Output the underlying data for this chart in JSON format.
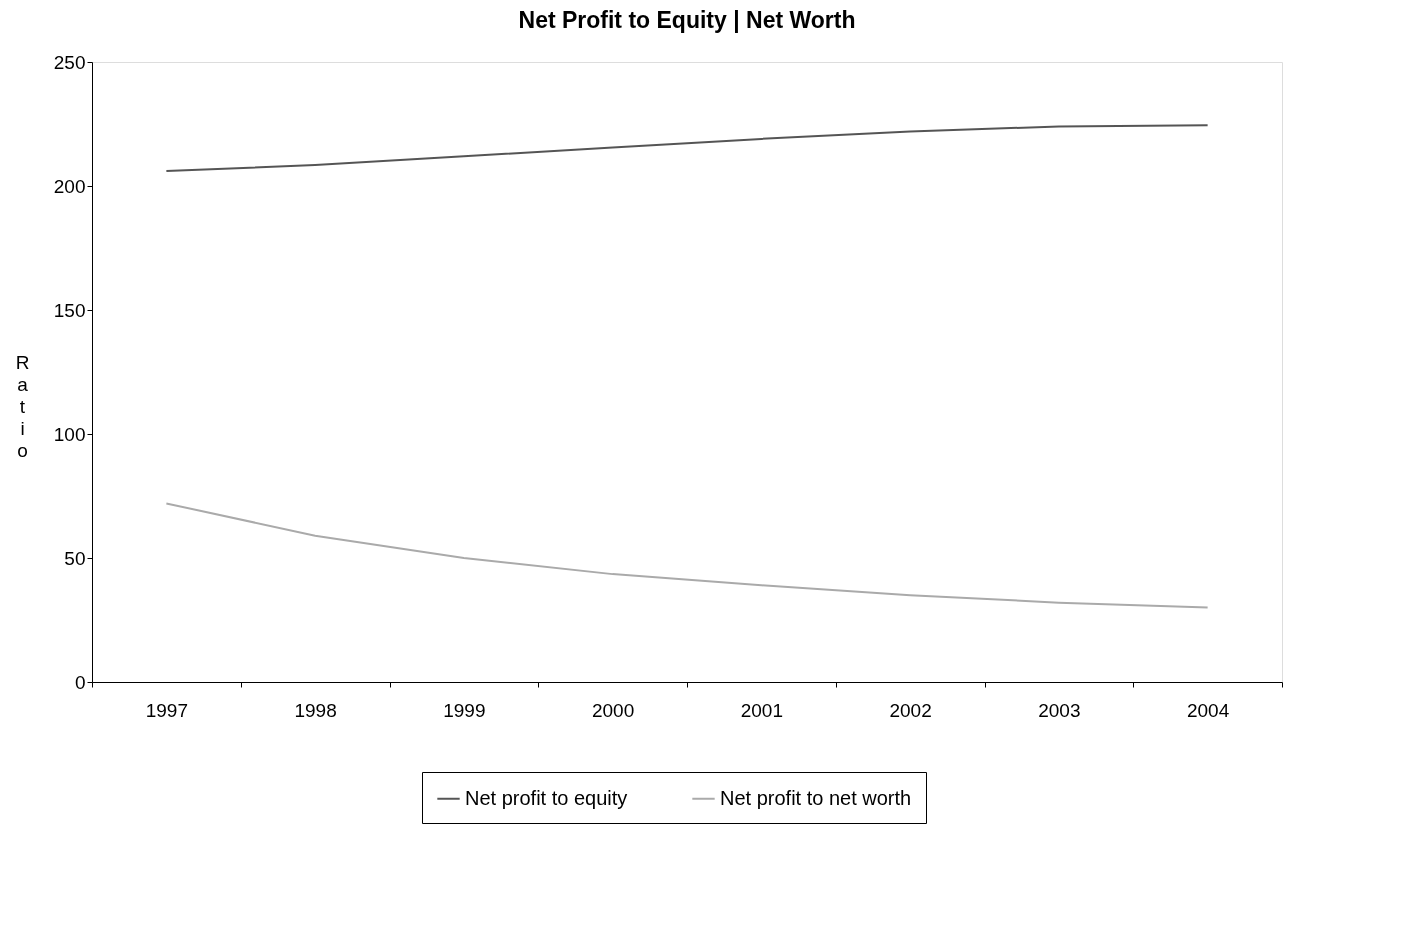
{
  "chart_data": {
    "type": "line",
    "title": "Net Profit to Equity | Net Worth",
    "ylabel": "Ratio",
    "categories": [
      "1997",
      "1998",
      "1999",
      "2000",
      "2001",
      "2002",
      "2003",
      "2004"
    ],
    "series": [
      {
        "name": "Net profit to equity",
        "color": "#555555",
        "values": [
          206,
          208.5,
          212,
          215.5,
          219,
          222,
          224,
          224.5
        ]
      },
      {
        "name": "Net profit to net worth",
        "color": "#aaaaaa",
        "values": [
          72,
          59,
          50,
          43.5,
          39,
          35,
          32,
          30
        ]
      }
    ],
    "ylim": [
      0,
      250
    ],
    "yticks": [
      0,
      50,
      100,
      150,
      200,
      250
    ],
    "grid": false,
    "legend": "bottom",
    "marker": "none",
    "line_style": "solid"
  }
}
